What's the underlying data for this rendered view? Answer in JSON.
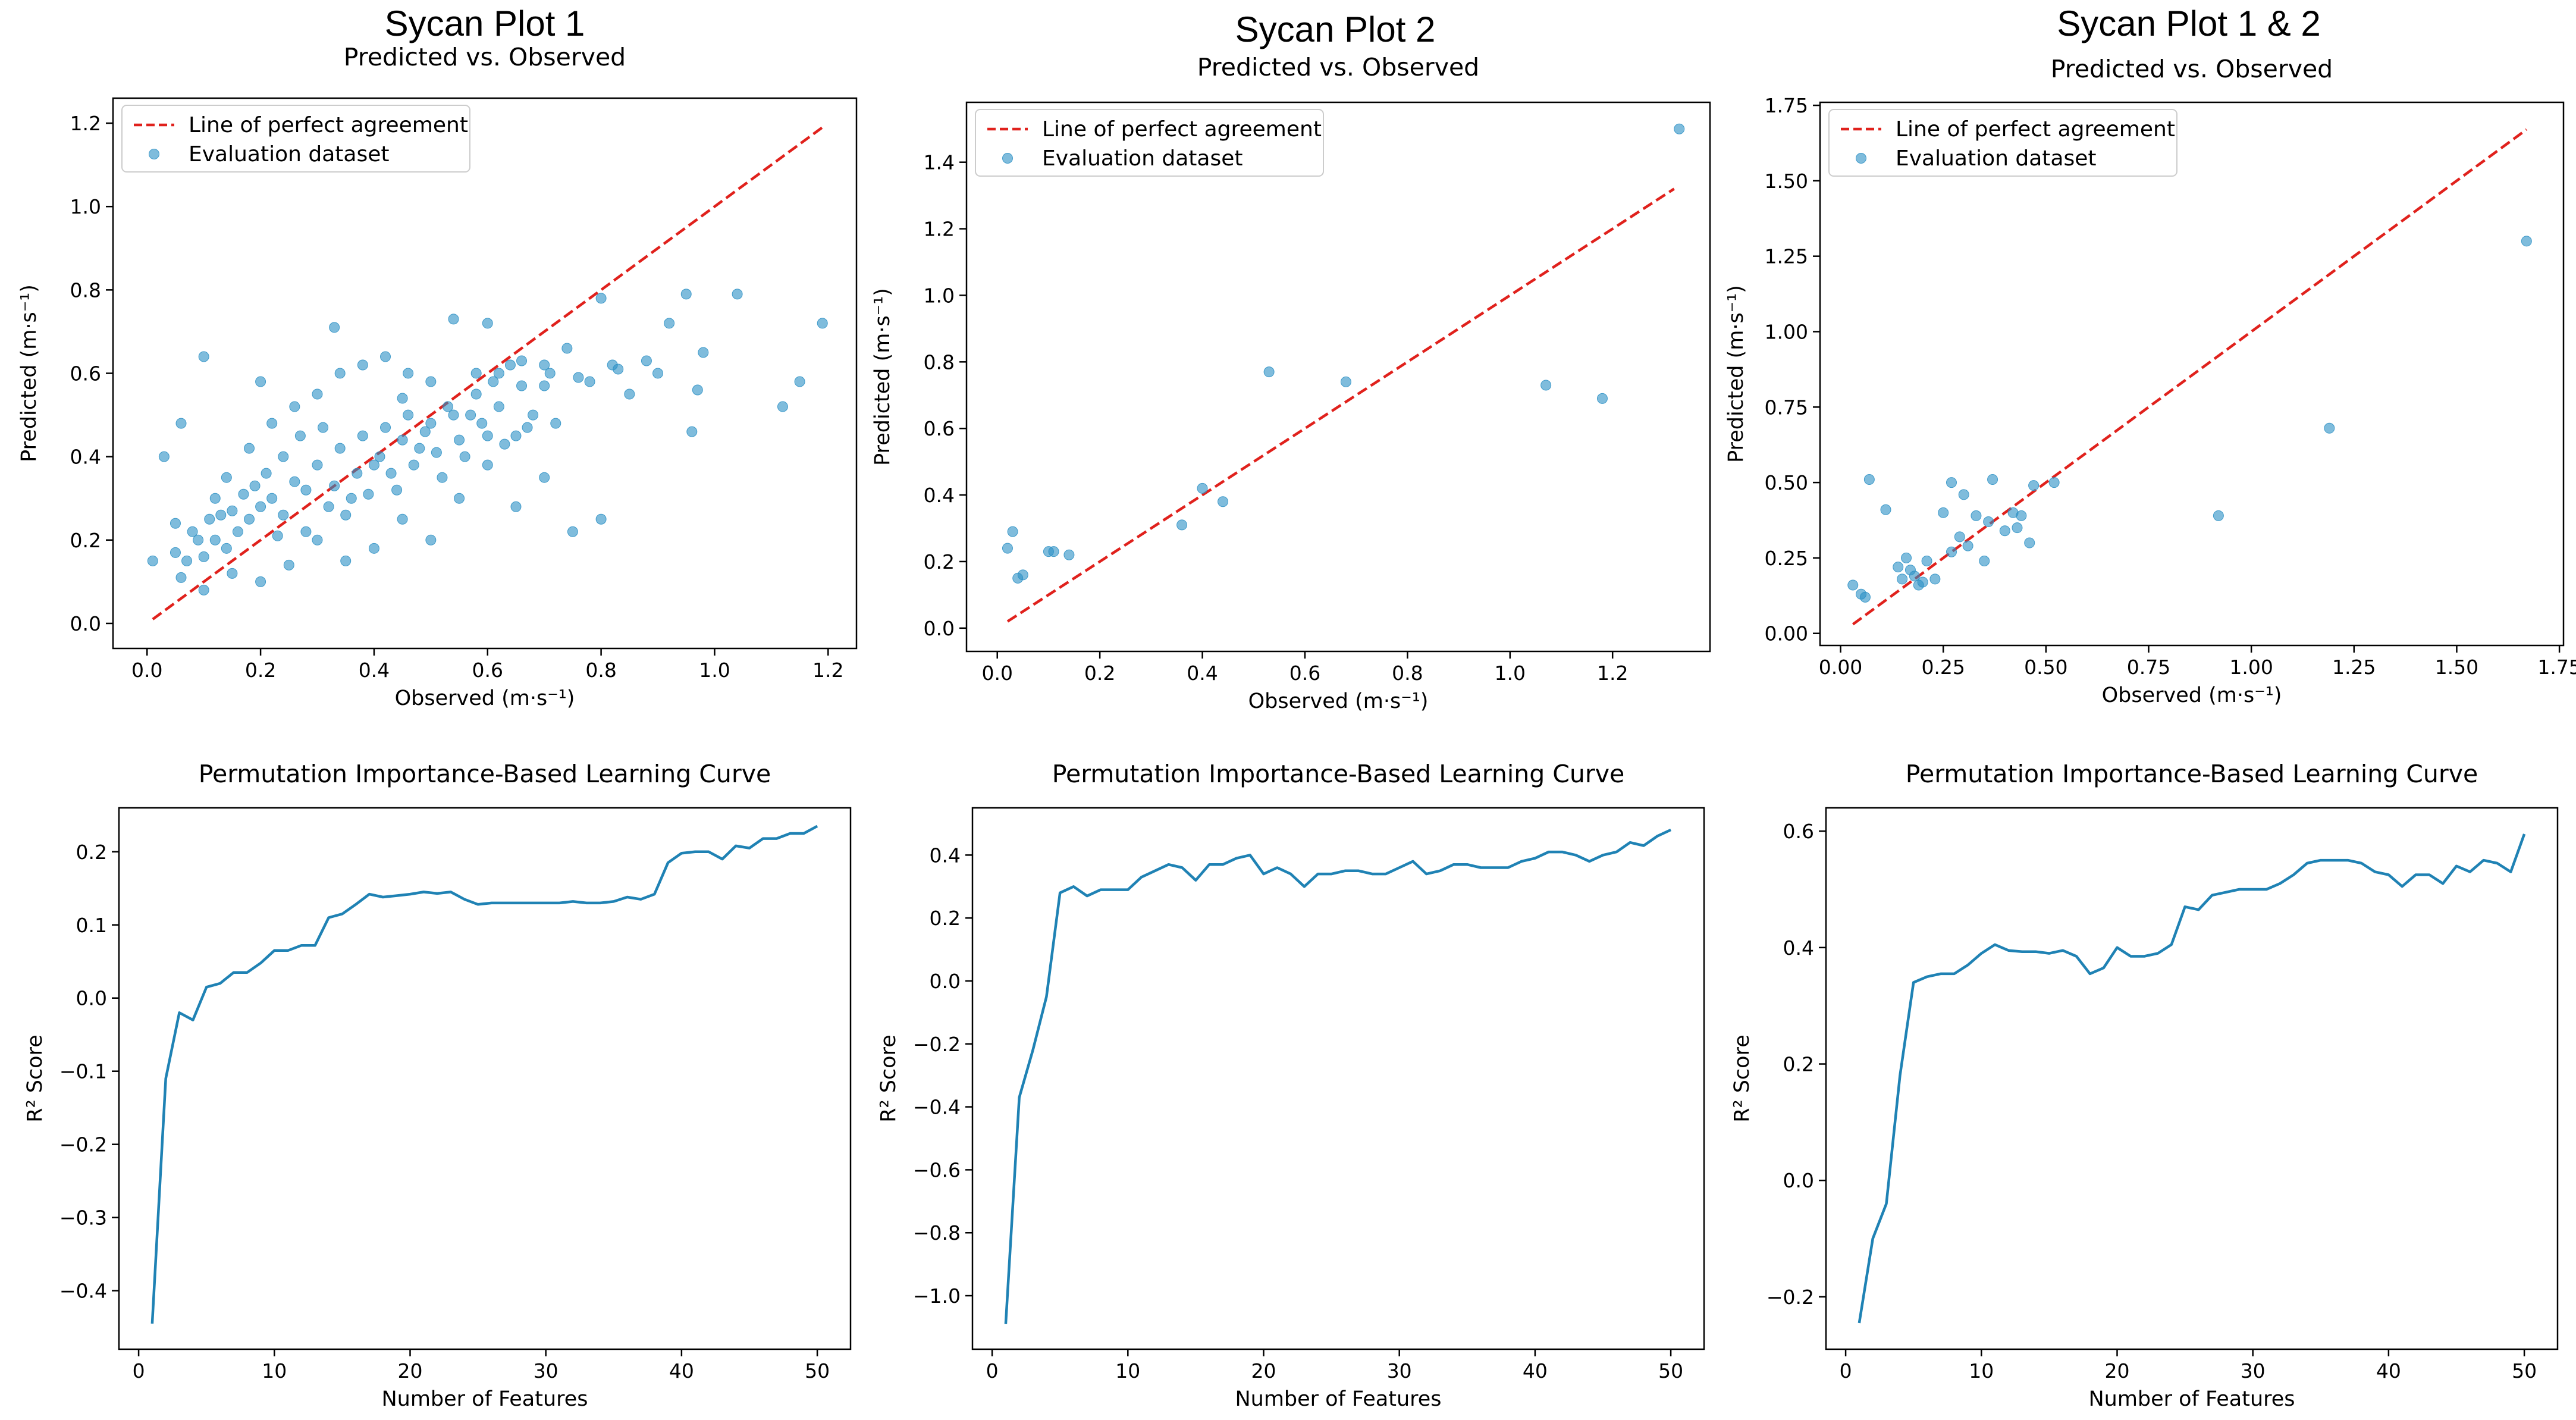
{
  "chart_data": [
    {
      "id": "scatter1",
      "type": "scatter",
      "suptitle": "Sycan Plot 1",
      "title": "Predicted vs. Observed",
      "xlabel": "Observed (m·s⁻¹)",
      "ylabel": "Predicted (m·s⁻¹)",
      "xlim": [
        -0.06,
        1.25
      ],
      "ylim": [
        -0.06,
        1.26
      ],
      "xticks": [
        0.0,
        0.2,
        0.4,
        0.6,
        0.8,
        1.0,
        1.2
      ],
      "yticks": [
        0.0,
        0.2,
        0.4,
        0.6,
        0.8,
        1.0,
        1.2
      ],
      "tick_decimals": 1,
      "legend": [
        "Line of perfect agreement",
        "Evaluation dataset"
      ],
      "perfect_line": [
        [
          0.01,
          0.01
        ],
        [
          1.19,
          1.19
        ]
      ],
      "points": [
        [
          0.01,
          0.15
        ],
        [
          0.03,
          0.4
        ],
        [
          0.05,
          0.24
        ],
        [
          0.06,
          0.48
        ],
        [
          0.1,
          0.64
        ],
        [
          0.2,
          0.58
        ],
        [
          0.33,
          0.71
        ],
        [
          0.45,
          0.54
        ],
        [
          0.54,
          0.73
        ],
        [
          0.6,
          0.72
        ],
        [
          0.66,
          0.63
        ],
        [
          0.7,
          0.62
        ],
        [
          0.74,
          0.66
        ],
        [
          0.8,
          0.78
        ],
        [
          0.83,
          0.61
        ],
        [
          0.88,
          0.63
        ],
        [
          0.9,
          0.6
        ],
        [
          0.92,
          0.72
        ],
        [
          0.95,
          0.79
        ],
        [
          0.98,
          0.65
        ],
        [
          0.97,
          0.56
        ],
        [
          0.96,
          0.46
        ],
        [
          1.04,
          0.79
        ],
        [
          1.12,
          0.52
        ],
        [
          1.15,
          0.58
        ],
        [
          1.19,
          0.72
        ],
        [
          0.75,
          0.22
        ],
        [
          0.8,
          0.25
        ],
        [
          0.65,
          0.28
        ],
        [
          0.7,
          0.35
        ],
        [
          0.6,
          0.45
        ],
        [
          0.55,
          0.3
        ],
        [
          0.5,
          0.2
        ],
        [
          0.45,
          0.25
        ],
        [
          0.4,
          0.18
        ],
        [
          0.35,
          0.15
        ],
        [
          0.3,
          0.2
        ],
        [
          0.25,
          0.14
        ],
        [
          0.2,
          0.1
        ],
        [
          0.15,
          0.12
        ],
        [
          0.1,
          0.08
        ],
        [
          0.06,
          0.11
        ],
        [
          0.08,
          0.22
        ],
        [
          0.12,
          0.3
        ],
        [
          0.14,
          0.35
        ],
        [
          0.18,
          0.42
        ],
        [
          0.22,
          0.48
        ],
        [
          0.26,
          0.52
        ],
        [
          0.3,
          0.55
        ],
        [
          0.34,
          0.6
        ],
        [
          0.38,
          0.62
        ],
        [
          0.42,
          0.64
        ],
        [
          0.46,
          0.6
        ],
        [
          0.5,
          0.58
        ],
        [
          0.58,
          0.55
        ],
        [
          0.62,
          0.52
        ],
        [
          0.68,
          0.5
        ],
        [
          0.72,
          0.48
        ],
        [
          0.78,
          0.58
        ],
        [
          0.85,
          0.55
        ],
        [
          0.65,
          0.45
        ],
        [
          0.6,
          0.38
        ],
        [
          0.56,
          0.4
        ],
        [
          0.52,
          0.35
        ],
        [
          0.48,
          0.42
        ],
        [
          0.44,
          0.32
        ],
        [
          0.4,
          0.38
        ],
        [
          0.36,
          0.3
        ],
        [
          0.32,
          0.28
        ],
        [
          0.28,
          0.32
        ],
        [
          0.24,
          0.26
        ],
        [
          0.2,
          0.28
        ],
        [
          0.16,
          0.22
        ],
        [
          0.12,
          0.2
        ],
        [
          0.1,
          0.16
        ],
        [
          0.14,
          0.18
        ],
        [
          0.18,
          0.25
        ],
        [
          0.22,
          0.3
        ],
        [
          0.26,
          0.34
        ],
        [
          0.3,
          0.38
        ],
        [
          0.34,
          0.42
        ],
        [
          0.38,
          0.45
        ],
        [
          0.42,
          0.47
        ],
        [
          0.46,
          0.5
        ],
        [
          0.5,
          0.48
        ],
        [
          0.54,
          0.5
        ],
        [
          0.58,
          0.6
        ],
        [
          0.62,
          0.6
        ],
        [
          0.66,
          0.57
        ],
        [
          0.7,
          0.57
        ],
        [
          0.28,
          0.22
        ],
        [
          0.33,
          0.33
        ],
        [
          0.23,
          0.21
        ],
        [
          0.19,
          0.33
        ],
        [
          0.15,
          0.27
        ],
        [
          0.11,
          0.25
        ],
        [
          0.09,
          0.2
        ],
        [
          0.07,
          0.15
        ],
        [
          0.05,
          0.17
        ],
        [
          0.37,
          0.36
        ],
        [
          0.41,
          0.4
        ],
        [
          0.45,
          0.44
        ],
        [
          0.49,
          0.46
        ],
        [
          0.53,
          0.52
        ],
        [
          0.57,
          0.5
        ],
        [
          0.61,
          0.58
        ],
        [
          0.64,
          0.62
        ],
        [
          0.24,
          0.4
        ],
        [
          0.27,
          0.45
        ],
        [
          0.31,
          0.47
        ],
        [
          0.21,
          0.36
        ],
        [
          0.17,
          0.31
        ],
        [
          0.13,
          0.26
        ],
        [
          0.35,
          0.26
        ],
        [
          0.39,
          0.31
        ],
        [
          0.43,
          0.36
        ],
        [
          0.47,
          0.38
        ],
        [
          0.51,
          0.41
        ],
        [
          0.55,
          0.44
        ],
        [
          0.59,
          0.48
        ],
        [
          0.63,
          0.43
        ],
        [
          0.67,
          0.47
        ],
        [
          0.71,
          0.6
        ],
        [
          0.76,
          0.59
        ],
        [
          0.82,
          0.62
        ]
      ]
    },
    {
      "id": "scatter2",
      "type": "scatter",
      "suptitle": "Sycan Plot 2",
      "title": "Predicted vs. Observed",
      "xlabel": "Observed (m·s⁻¹)",
      "ylabel": "Predicted (m·s⁻¹)",
      "xlim": [
        -0.06,
        1.39
      ],
      "ylim": [
        -0.07,
        1.58
      ],
      "xticks": [
        0.0,
        0.2,
        0.4,
        0.6,
        0.8,
        1.0,
        1.2
      ],
      "yticks": [
        0.0,
        0.2,
        0.4,
        0.6,
        0.8,
        1.0,
        1.2,
        1.4
      ],
      "tick_decimals": 1,
      "legend": [
        "Line of perfect agreement",
        "Evaluation dataset"
      ],
      "perfect_line": [
        [
          0.02,
          0.02
        ],
        [
          1.32,
          1.32
        ]
      ],
      "points": [
        [
          0.02,
          0.24
        ],
        [
          0.03,
          0.29
        ],
        [
          0.04,
          0.15
        ],
        [
          0.05,
          0.16
        ],
        [
          0.1,
          0.23
        ],
        [
          0.11,
          0.23
        ],
        [
          0.14,
          0.22
        ],
        [
          0.36,
          0.31
        ],
        [
          0.4,
          0.42
        ],
        [
          0.44,
          0.38
        ],
        [
          0.53,
          0.77
        ],
        [
          0.68,
          0.74
        ],
        [
          1.07,
          0.73
        ],
        [
          1.18,
          0.69
        ],
        [
          1.33,
          1.5
        ]
      ]
    },
    {
      "id": "scatter3",
      "type": "scatter",
      "suptitle": "Sycan Plot 1 & 2",
      "title": "Predicted vs. Observed",
      "xlabel": "Observed (m·s⁻¹)",
      "ylabel": "Predicted (m·s⁻¹)",
      "xlim": [
        -0.05,
        1.76
      ],
      "ylim": [
        -0.04,
        1.76
      ],
      "xticks": [
        0.0,
        0.25,
        0.5,
        0.75,
        1.0,
        1.25,
        1.5,
        1.75
      ],
      "yticks": [
        0.0,
        0.25,
        0.5,
        0.75,
        1.0,
        1.25,
        1.5,
        1.75
      ],
      "tick_decimals": 2,
      "legend": [
        "Line of perfect agreement",
        "Evaluation dataset"
      ],
      "perfect_line": [
        [
          0.03,
          0.03
        ],
        [
          1.67,
          1.67
        ]
      ],
      "points": [
        [
          0.03,
          0.16
        ],
        [
          0.05,
          0.13
        ],
        [
          0.06,
          0.12
        ],
        [
          0.07,
          0.51
        ],
        [
          0.11,
          0.41
        ],
        [
          0.14,
          0.22
        ],
        [
          0.15,
          0.18
        ],
        [
          0.16,
          0.25
        ],
        [
          0.17,
          0.21
        ],
        [
          0.18,
          0.19
        ],
        [
          0.19,
          0.16
        ],
        [
          0.2,
          0.17
        ],
        [
          0.21,
          0.24
        ],
        [
          0.23,
          0.18
        ],
        [
          0.25,
          0.4
        ],
        [
          0.27,
          0.27
        ],
        [
          0.27,
          0.5
        ],
        [
          0.29,
          0.32
        ],
        [
          0.3,
          0.46
        ],
        [
          0.31,
          0.29
        ],
        [
          0.33,
          0.39
        ],
        [
          0.35,
          0.24
        ],
        [
          0.36,
          0.37
        ],
        [
          0.37,
          0.51
        ],
        [
          0.4,
          0.34
        ],
        [
          0.42,
          0.4
        ],
        [
          0.43,
          0.35
        ],
        [
          0.44,
          0.39
        ],
        [
          0.46,
          0.3
        ],
        [
          0.47,
          0.49
        ],
        [
          0.52,
          0.5
        ],
        [
          0.92,
          0.39
        ],
        [
          1.19,
          0.68
        ],
        [
          1.67,
          1.3
        ]
      ]
    },
    {
      "id": "curve1",
      "type": "line",
      "title": "Permutation Importance-Based Learning Curve",
      "xlabel": "Number of Features",
      "ylabel": "R² Score",
      "xlim": [
        -1.45,
        52.45
      ],
      "ylim": [
        -0.48,
        0.26
      ],
      "xticks": [
        0,
        10,
        20,
        30,
        40,
        50
      ],
      "yticks": [
        -0.4,
        -0.3,
        -0.2,
        -0.1,
        0.0,
        0.1,
        0.2
      ],
      "tick_decimals": 1,
      "x": [
        1,
        2,
        3,
        4,
        5,
        6,
        7,
        8,
        9,
        10,
        11,
        12,
        13,
        14,
        15,
        16,
        17,
        18,
        19,
        20,
        21,
        22,
        23,
        24,
        25,
        26,
        27,
        28,
        29,
        30,
        31,
        32,
        33,
        34,
        35,
        36,
        37,
        38,
        39,
        40,
        41,
        42,
        43,
        44,
        45,
        46,
        47,
        48,
        49,
        50
      ],
      "values": [
        -0.445,
        -0.11,
        -0.02,
        -0.03,
        0.015,
        0.02,
        0.035,
        0.035,
        0.048,
        0.065,
        0.065,
        0.072,
        0.072,
        0.11,
        0.115,
        0.128,
        0.142,
        0.138,
        0.14,
        0.142,
        0.145,
        0.143,
        0.145,
        0.135,
        0.128,
        0.13,
        0.13,
        0.13,
        0.13,
        0.13,
        0.13,
        0.132,
        0.13,
        0.13,
        0.132,
        0.138,
        0.135,
        0.142,
        0.185,
        0.198,
        0.2,
        0.2,
        0.19,
        0.208,
        0.205,
        0.218,
        0.218,
        0.225,
        0.225,
        0.235
      ]
    },
    {
      "id": "curve2",
      "type": "line",
      "title": "Permutation Importance-Based Learning Curve",
      "xlabel": "Number of Features",
      "ylabel": "R² Score",
      "xlim": [
        -1.45,
        52.45
      ],
      "ylim": [
        -1.17,
        0.55
      ],
      "xticks": [
        0,
        10,
        20,
        30,
        40,
        50
      ],
      "yticks": [
        -1.0,
        -0.8,
        -0.6,
        -0.4,
        -0.2,
        0.0,
        0.2,
        0.4
      ],
      "tick_decimals": 1,
      "x": [
        1,
        2,
        3,
        4,
        5,
        6,
        7,
        8,
        9,
        10,
        11,
        12,
        13,
        14,
        15,
        16,
        17,
        18,
        19,
        20,
        21,
        22,
        23,
        24,
        25,
        26,
        27,
        28,
        29,
        30,
        31,
        32,
        33,
        34,
        35,
        36,
        37,
        38,
        39,
        40,
        41,
        42,
        43,
        44,
        45,
        46,
        47,
        48,
        49,
        50
      ],
      "values": [
        -1.09,
        -0.37,
        -0.22,
        -0.05,
        0.28,
        0.3,
        0.27,
        0.29,
        0.29,
        0.29,
        0.33,
        0.35,
        0.37,
        0.36,
        0.32,
        0.37,
        0.37,
        0.39,
        0.4,
        0.34,
        0.36,
        0.34,
        0.3,
        0.34,
        0.34,
        0.35,
        0.35,
        0.34,
        0.34,
        0.36,
        0.38,
        0.34,
        0.35,
        0.37,
        0.37,
        0.36,
        0.36,
        0.36,
        0.38,
        0.39,
        0.41,
        0.41,
        0.4,
        0.38,
        0.4,
        0.41,
        0.44,
        0.43,
        0.46,
        0.48
      ]
    },
    {
      "id": "curve3",
      "type": "line",
      "title": "Permutation Importance-Based Learning Curve",
      "xlabel": "Number of Features",
      "ylabel": "R² Score",
      "xlim": [
        -1.45,
        52.45
      ],
      "ylim": [
        -0.29,
        0.64
      ],
      "xticks": [
        0,
        10,
        20,
        30,
        40,
        50
      ],
      "yticks": [
        -0.2,
        0.0,
        0.2,
        0.4,
        0.6
      ],
      "tick_decimals": 1,
      "x": [
        1,
        2,
        3,
        4,
        5,
        6,
        7,
        8,
        9,
        10,
        11,
        12,
        13,
        14,
        15,
        16,
        17,
        18,
        19,
        20,
        21,
        22,
        23,
        24,
        25,
        26,
        27,
        28,
        29,
        30,
        31,
        32,
        33,
        34,
        35,
        36,
        37,
        38,
        39,
        40,
        41,
        42,
        43,
        44,
        45,
        46,
        47,
        48,
        49,
        50
      ],
      "values": [
        -0.245,
        -0.1,
        -0.04,
        0.18,
        0.34,
        0.35,
        0.355,
        0.355,
        0.37,
        0.39,
        0.405,
        0.395,
        0.393,
        0.393,
        0.39,
        0.395,
        0.385,
        0.355,
        0.365,
        0.4,
        0.385,
        0.385,
        0.39,
        0.405,
        0.47,
        0.465,
        0.49,
        0.495,
        0.5,
        0.5,
        0.5,
        0.51,
        0.525,
        0.545,
        0.55,
        0.55,
        0.55,
        0.545,
        0.53,
        0.525,
        0.505,
        0.525,
        0.525,
        0.51,
        0.54,
        0.53,
        0.55,
        0.545,
        0.53,
        0.595
      ]
    }
  ]
}
